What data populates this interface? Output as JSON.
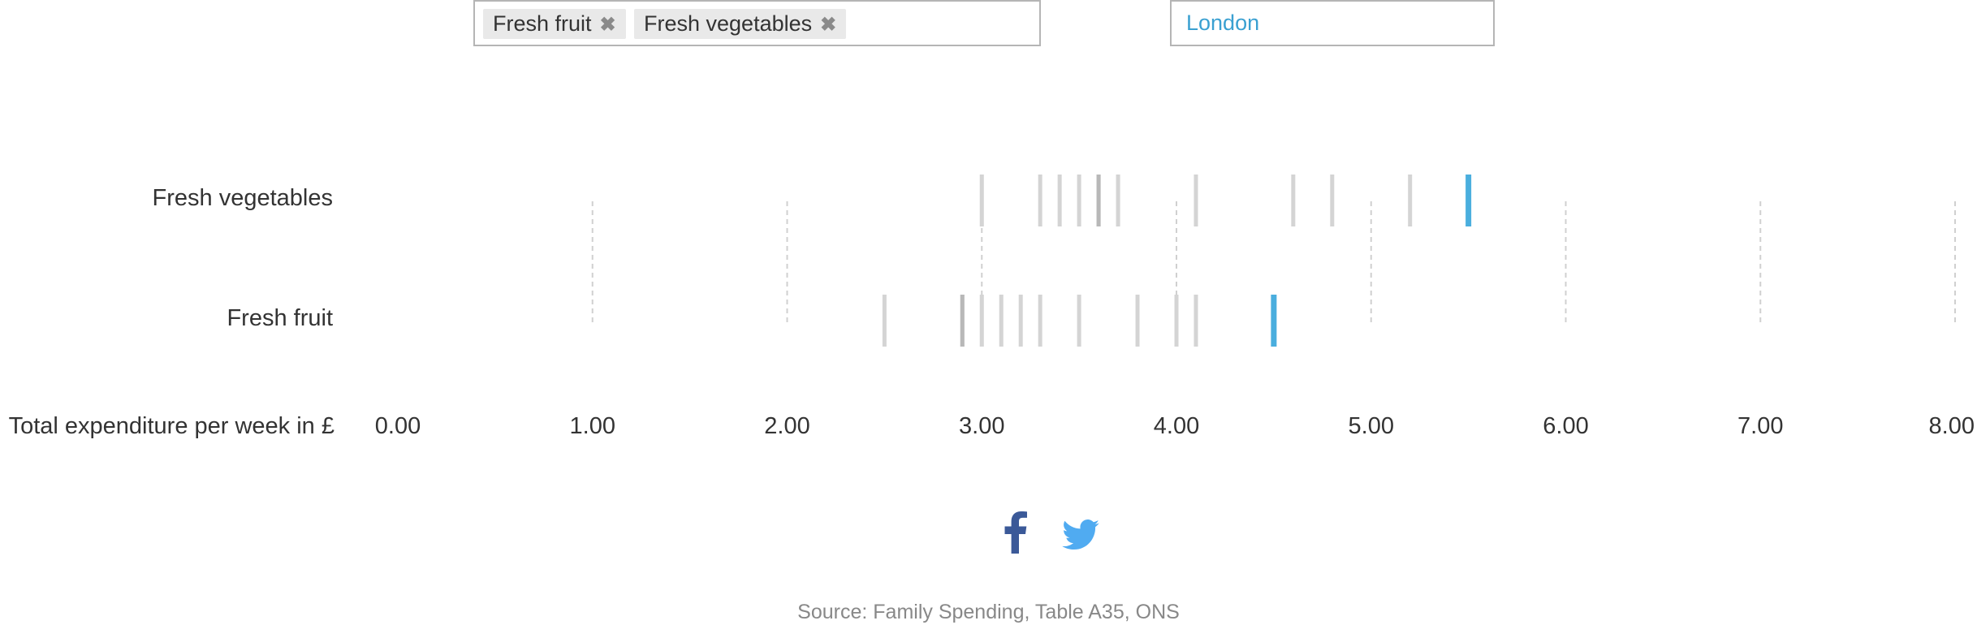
{
  "filters": {
    "tags": [
      {
        "label": "Fresh fruit",
        "remove_glyph": "✖"
      },
      {
        "label": "Fresh vegetables",
        "remove_glyph": "✖"
      }
    ],
    "region": "London"
  },
  "chart_data": {
    "type": "strip",
    "xlabel": "Total expenditure per week in £",
    "xlim": [
      0,
      8
    ],
    "ticks": [
      "0.00",
      "1.00",
      "2.00",
      "3.00",
      "4.00",
      "5.00",
      "6.00",
      "7.00",
      "8.00"
    ],
    "grid": true,
    "highlight": "London",
    "colors": {
      "highlight": "#4aaede",
      "other": "#d4d4d4",
      "other_dark": "#b8b8b8",
      "grid": "#d0d0d0"
    },
    "rows": [
      {
        "name": "Fresh vegetables",
        "others": [
          3.0,
          3.3,
          3.4,
          3.5,
          3.6,
          3.7,
          4.1,
          4.6,
          4.8,
          5.2
        ],
        "others_dark": [
          3.6
        ],
        "highlight_value": 5.5
      },
      {
        "name": "Fresh fruit",
        "others": [
          2.5,
          2.9,
          3.0,
          3.1,
          3.2,
          3.3,
          3.5,
          3.8,
          4.0,
          4.1
        ],
        "others_dark": [
          2.9
        ],
        "highlight_value": 4.5
      }
    ]
  },
  "share": {
    "facebook_icon": "facebook-icon",
    "twitter_icon": "twitter-icon"
  },
  "source": "Source: Family Spending, Table A35, ONS"
}
